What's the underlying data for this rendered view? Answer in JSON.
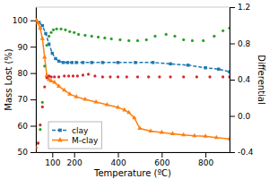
{
  "chart_data": {
    "type": "line",
    "xlabel": "Temperature (ºC)",
    "ylabel": "Mass Lost (%)",
    "y2label": "Differential",
    "xlim": [
      25,
      910
    ],
    "ylim": [
      50,
      105
    ],
    "y2lim": [
      -0.4,
      1.2
    ],
    "xticks": [
      100,
      200,
      400,
      600,
      800
    ],
    "yticks": [
      50,
      60,
      70,
      80,
      90,
      100
    ],
    "y2ticks": [
      -0.4,
      {
        "value": 0,
        "label": "0.0"
      },
      0.4,
      0.8,
      1.2
    ],
    "legend": "lower left",
    "grid": false,
    "series": [
      {
        "name": "clay",
        "type": "line",
        "marker": "square",
        "line_style": "dashed",
        "x": [
          25,
          40,
          55,
          70,
          85,
          100,
          115,
          130,
          150,
          170,
          190,
          210,
          240,
          280,
          330,
          400,
          480,
          560,
          640,
          720,
          800,
          860,
          910
        ],
        "values": [
          100,
          99.2,
          98,
          95,
          91,
          87.5,
          85.5,
          84.5,
          84,
          84,
          84,
          84,
          84,
          84,
          84,
          84,
          84,
          84,
          83.5,
          83,
          82,
          81.5,
          80.5
        ]
      },
      {
        "name": "M-clay",
        "type": "line",
        "marker": "triangle",
        "line_style": "solid",
        "x": [
          25,
          35,
          45,
          55,
          65,
          75,
          85,
          95,
          110,
          130,
          155,
          180,
          210,
          250,
          300,
          350,
          400,
          430,
          450,
          475,
          500,
          550,
          600,
          650,
          700,
          750,
          800,
          850,
          910
        ],
        "values": [
          100,
          99,
          97,
          93,
          86,
          79,
          77.5,
          77,
          76.5,
          75,
          73.5,
          72,
          71,
          70,
          69,
          68,
          67,
          66,
          65,
          63,
          59,
          58,
          57.5,
          57,
          56.5,
          56.2,
          56,
          55.5,
          55
        ]
      },
      {
        "type": "scatter",
        "marker": "dot",
        "line_style": "none",
        "axis": "y2",
        "x": [
          25,
          35,
          45,
          55,
          65,
          75,
          85,
          95,
          105,
          120,
          140,
          160,
          180,
          200,
          220,
          250,
          280,
          310,
          340,
          370,
          410,
          450,
          490,
          530,
          570,
          620,
          660,
          700,
          740,
          790,
          840,
          880,
          910
        ],
        "values": [
          -0.35,
          -0.3,
          -0.15,
          0.15,
          0.55,
          0.78,
          0.88,
          0.92,
          0.95,
          0.96,
          0.96,
          0.95,
          0.93,
          0.92,
          0.9,
          0.89,
          0.88,
          0.87,
          0.86,
          0.85,
          0.84,
          0.83,
          0.83,
          0.84,
          0.88,
          0.9,
          0.88,
          0.84,
          0.83,
          0.83,
          0.88,
          0.94,
          0.97
        ]
      },
      {
        "type": "scatter",
        "marker": "dot",
        "line_style": "none",
        "axis": "y2",
        "x": [
          25,
          35,
          45,
          55,
          65,
          75,
          85,
          95,
          110,
          130,
          155,
          175,
          195,
          215,
          240,
          265,
          295,
          330,
          365,
          400,
          440,
          490,
          540,
          590,
          640,
          700,
          760,
          820,
          880,
          910
        ],
        "values": [
          -0.35,
          -0.3,
          -0.1,
          0.1,
          0.32,
          0.42,
          0.44,
          0.43,
          0.43,
          0.43,
          0.44,
          0.44,
          0.44,
          0.44,
          0.45,
          0.46,
          0.44,
          0.43,
          0.43,
          0.43,
          0.43,
          0.43,
          0.43,
          0.43,
          0.43,
          0.43,
          0.43,
          0.43,
          0.43,
          0.43
        ]
      }
    ]
  }
}
